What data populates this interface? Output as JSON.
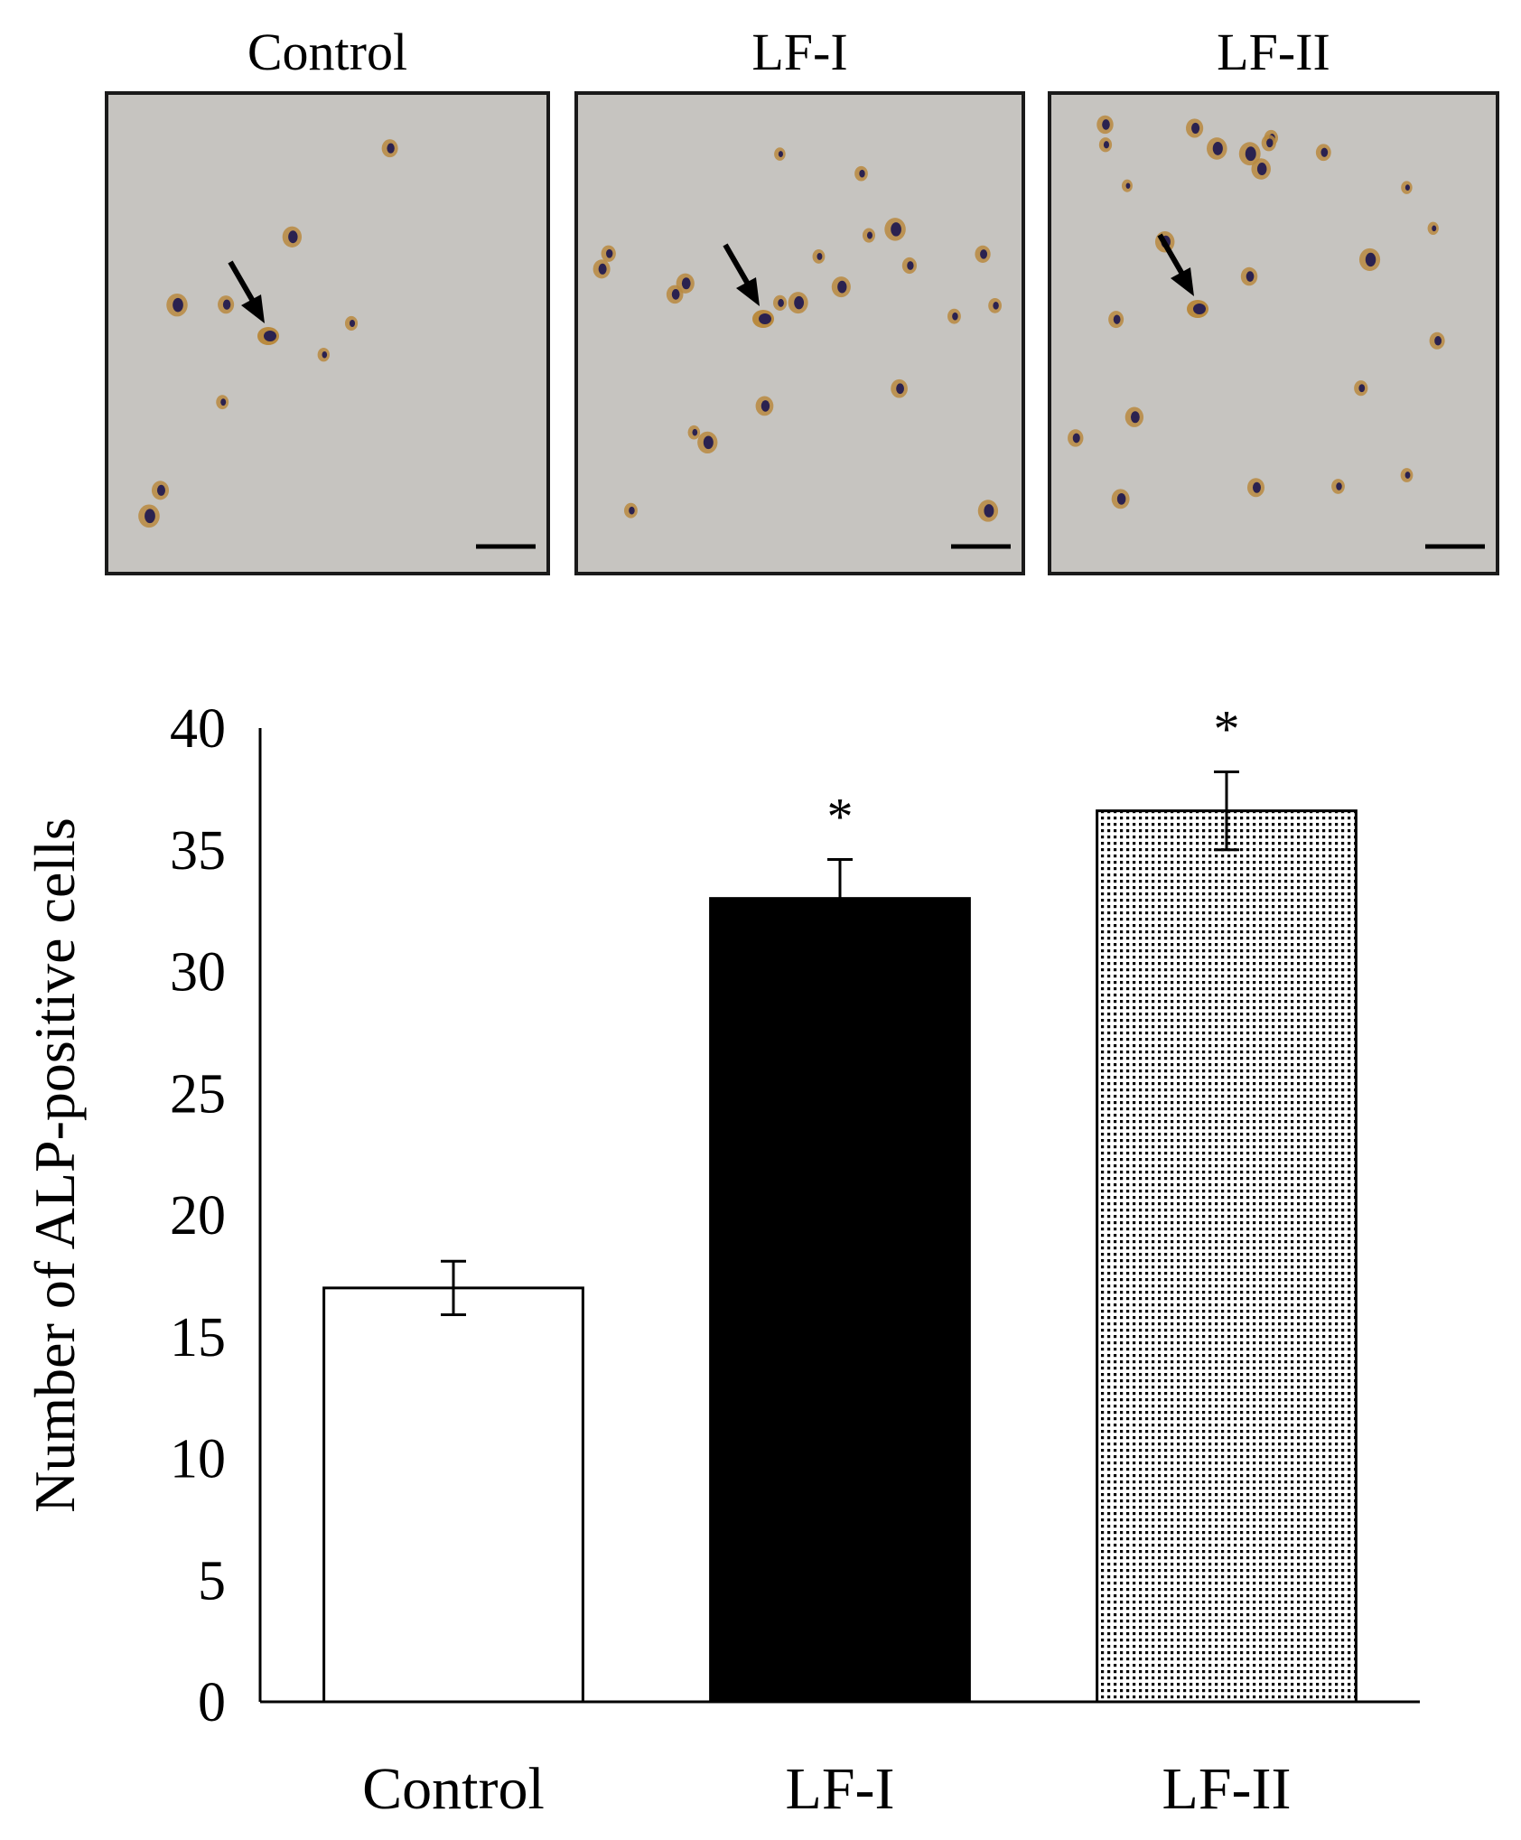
{
  "micrographs": {
    "panels": [
      {
        "label": "Control",
        "arrow_icon": "arrow-down-right-icon"
      },
      {
        "label": "LF-I",
        "arrow_icon": "arrow-down-right-icon"
      },
      {
        "label": "LF-II",
        "arrow_icon": "arrow-down-right-icon"
      }
    ],
    "background_color": "#c6c4c0"
  },
  "chart_data": {
    "type": "bar",
    "categories": [
      "Control",
      "LF-I",
      "LF-II"
    ],
    "series": [
      {
        "values": [
          17.0,
          33.0,
          36.6
        ],
        "errors": [
          1.1,
          1.6,
          1.6
        ],
        "significance": [
          "",
          "*",
          "*"
        ],
        "fills": [
          "white",
          "black",
          "dotted"
        ]
      }
    ],
    "ylabel": "Number of ALP-positive cells",
    "xlabel": "",
    "ylim": [
      0,
      40
    ],
    "yticks": [
      0,
      5,
      10,
      15,
      20,
      25,
      30,
      35,
      40
    ],
    "grid": false,
    "legend": "none"
  }
}
